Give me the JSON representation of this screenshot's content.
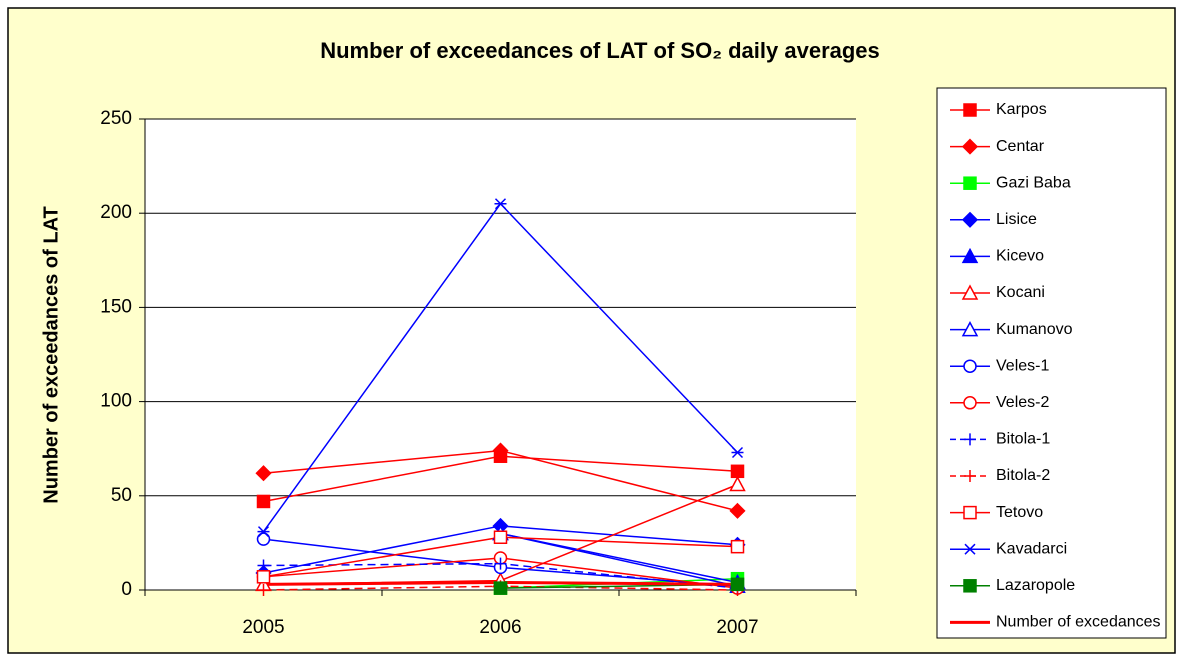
{
  "chart_data": {
    "type": "line",
    "title": "Number of exceedances of LAT of SO₂ daily averages",
    "y_label": "Number of exceedances of LAT",
    "categories": [
      "2005",
      "2006",
      "2007"
    ],
    "ylim": [
      0,
      250
    ],
    "yticks": [
      0,
      50,
      100,
      150,
      200,
      250
    ],
    "grid": true,
    "legend": "right",
    "series": [
      {
        "name": "Karpos",
        "color": "#ff0000",
        "marker": "square",
        "filled": true,
        "values": [
          47,
          71,
          63
        ]
      },
      {
        "name": "Centar",
        "color": "#ff0000",
        "marker": "diamond",
        "filled": true,
        "values": [
          62,
          74,
          42
        ]
      },
      {
        "name": "Gazi Baba",
        "color": "#00ff00",
        "marker": "square",
        "filled": true,
        "values": [
          null,
          1,
          6
        ]
      },
      {
        "name": "Lisice",
        "color": "#0000ff",
        "marker": "diamond",
        "filled": true,
        "values": [
          9,
          34,
          24
        ]
      },
      {
        "name": "Kicevo",
        "color": "#0000ff",
        "marker": "triangle",
        "filled": true,
        "values": [
          null,
          30,
          4
        ]
      },
      {
        "name": "Kocani",
        "color": "#ff0000",
        "marker": "triangle",
        "filled": false,
        "values": [
          3,
          5,
          56
        ]
      },
      {
        "name": "Kumanovo",
        "color": "#0000ff",
        "marker": "triangle",
        "filled": false,
        "values": [
          null,
          30,
          2
        ]
      },
      {
        "name": "Veles-1",
        "color": "#0000ff",
        "marker": "circle",
        "filled": false,
        "values": [
          27,
          12,
          2
        ]
      },
      {
        "name": "Veles-2",
        "color": "#ff0000",
        "marker": "circle",
        "filled": false,
        "values": [
          7,
          17,
          1
        ]
      },
      {
        "name": "Bitola-1",
        "color": "#0000ff",
        "marker": "plus",
        "filled": false,
        "dashed": true,
        "values": [
          13,
          14,
          1
        ]
      },
      {
        "name": "Bitola-2",
        "color": "#ff0000",
        "marker": "plus",
        "filled": false,
        "dashed": true,
        "values": [
          0,
          2,
          0
        ]
      },
      {
        "name": "Tetovo",
        "color": "#ff0000",
        "marker": "square",
        "filled": false,
        "values": [
          7,
          28,
          23
        ]
      },
      {
        "name": "Kavadarci",
        "color": "#0000ff",
        "marker": "star",
        "filled": false,
        "values": [
          31,
          205,
          73
        ]
      },
      {
        "name": "Lazaropole",
        "color": "#008000",
        "marker": "square",
        "filled": true,
        "values": [
          null,
          1,
          3
        ]
      },
      {
        "name": "Number of excedances",
        "color": "#ff0000",
        "marker": "none",
        "width": 3,
        "values": [
          3,
          4,
          3
        ]
      }
    ]
  }
}
